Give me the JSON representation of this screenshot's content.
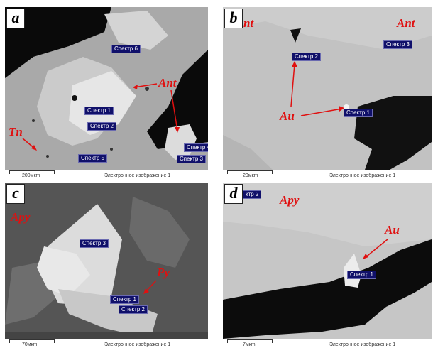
{
  "panels": {
    "a": {
      "label": "a",
      "spectra": [
        "Спектр 6",
        "Спектр 1",
        "Спектр 2",
        "Спектр 5",
        "Спектр 4",
        "Спектр 3"
      ],
      "minerals": {
        "ant": "Ant",
        "tn": "Tn"
      },
      "scale": "200мкm",
      "image_caption": "Электронное изображение 1"
    },
    "b": {
      "label": "b",
      "spectra": [
        "Спектр 2",
        "Спектр 3",
        "Спектр 1"
      ],
      "minerals": {
        "ant_left": "nt",
        "ant_right": "Ant",
        "au": "Au"
      },
      "scale": "20мкm",
      "image_caption": "Электронное изображение 1"
    },
    "c": {
      "label": "c",
      "spectra": [
        "Спектр 3",
        "Спектр 1",
        "Спектр 2"
      ],
      "minerals": {
        "apy": "Apy",
        "py": "Py"
      },
      "scale": "70мкm",
      "image_caption": "Электронное изображение 1"
    },
    "d": {
      "label": "d",
      "spectra": [
        "ктр 2",
        "Спектр 1"
      ],
      "minerals": {
        "apy": "Apy",
        "au": "Au"
      },
      "scale": "7мкm",
      "image_caption": "Электронное изображение 1"
    }
  },
  "colors": {
    "annotation": "#e01010",
    "spectrum_box": "#10106a"
  }
}
